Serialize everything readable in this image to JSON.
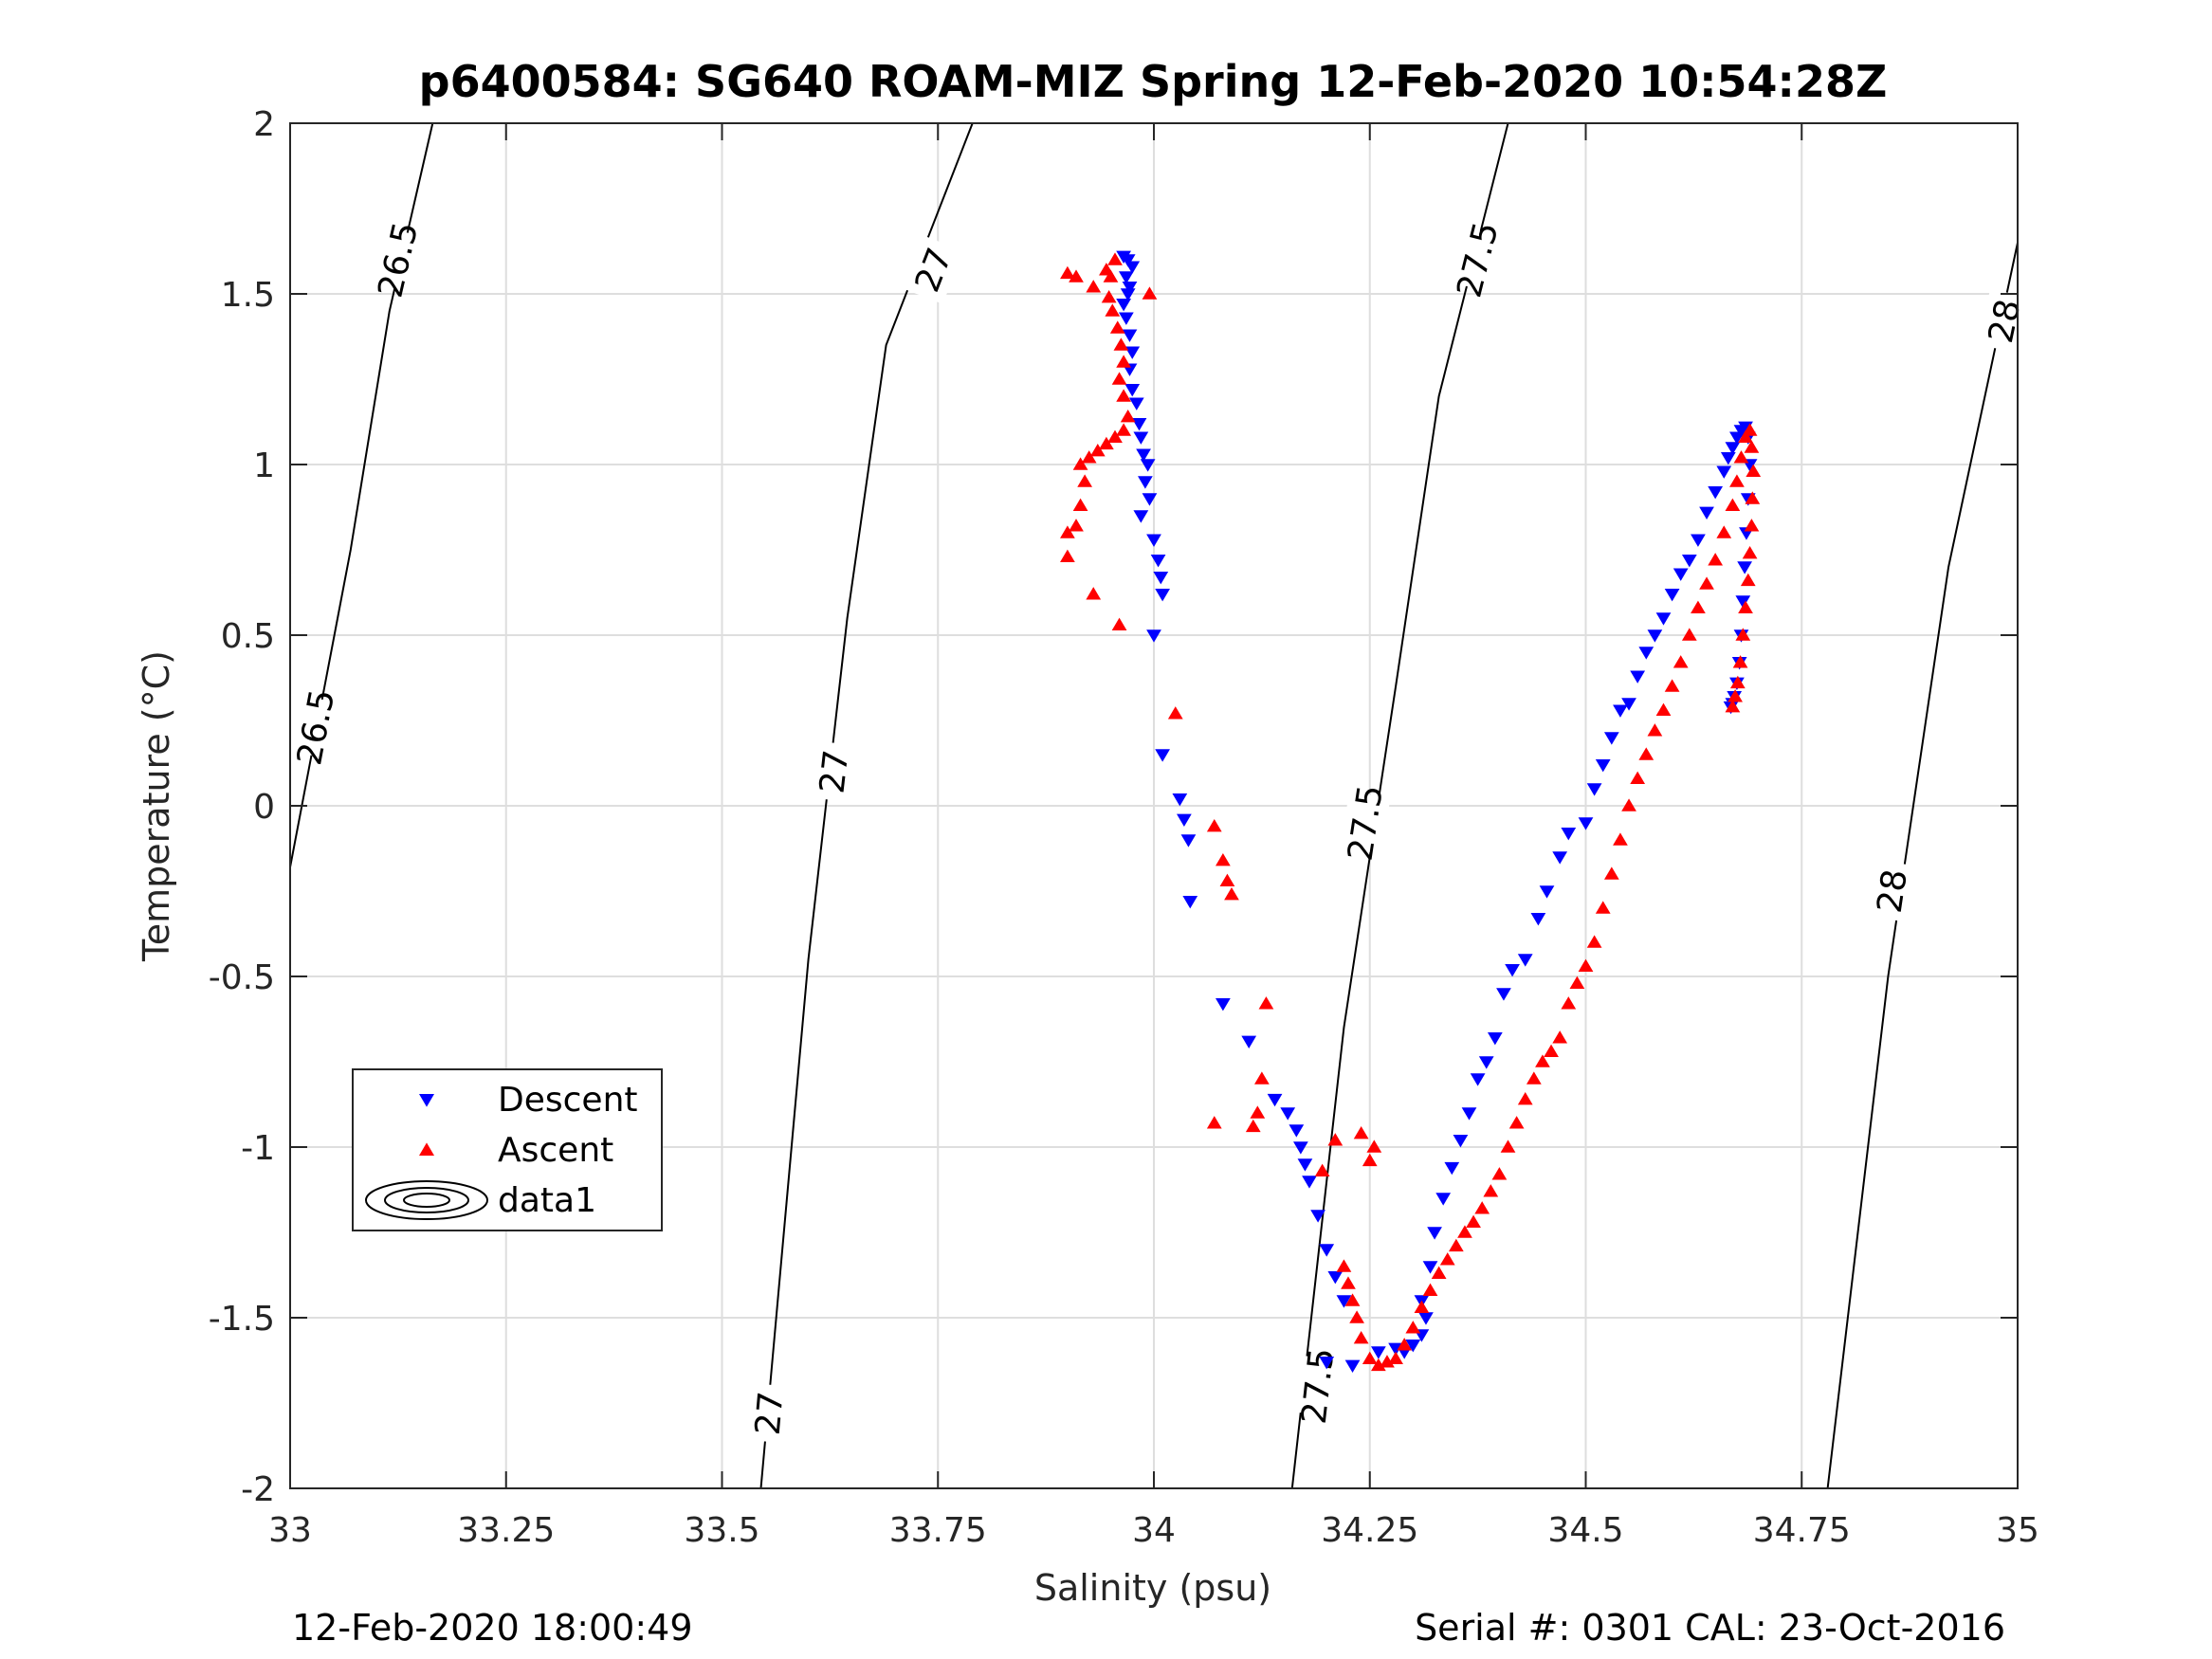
{
  "chart_data": {
    "type": "scatter",
    "title": "p6400584: SG640 ROAM-MIZ Spring 12-Feb-2020 10:54:28Z",
    "xlabel": "Salinity (psu)",
    "ylabel": "Temperature (°C)",
    "xlim": [
      33,
      35
    ],
    "ylim": [
      -2,
      2
    ],
    "xticks": [
      33,
      33.25,
      33.5,
      33.75,
      34,
      34.25,
      34.5,
      34.75,
      35
    ],
    "xtick_labels": [
      "33",
      "33.25",
      "33.5",
      "33.75",
      "34",
      "34.25",
      "34.5",
      "34.75",
      "35"
    ],
    "yticks": [
      -2,
      -1.5,
      -1,
      -0.5,
      0,
      0.5,
      1,
      1.5,
      2
    ],
    "ytick_labels": [
      "-2",
      "-1.5",
      "-1",
      "-0.5",
      "0",
      "0.5",
      "1",
      "1.5",
      "2"
    ],
    "grid": true,
    "legend_position": "lower-left",
    "footer_left": "12-Feb-2020 18:00:49",
    "footer_right": "Serial #: 0301  CAL: 23-Oct-2016",
    "series": [
      {
        "name": "Descent",
        "marker": "triangle-down",
        "color": "#0000ff",
        "points": [
          [
            33.965,
            1.61
          ],
          [
            33.97,
            1.6
          ],
          [
            33.975,
            1.58
          ],
          [
            33.968,
            1.55
          ],
          [
            33.972,
            1.52
          ],
          [
            33.97,
            1.5
          ],
          [
            33.965,
            1.47
          ],
          [
            33.968,
            1.43
          ],
          [
            33.972,
            1.38
          ],
          [
            33.975,
            1.33
          ],
          [
            33.972,
            1.28
          ],
          [
            33.975,
            1.22
          ],
          [
            33.98,
            1.18
          ],
          [
            33.983,
            1.12
          ],
          [
            33.985,
            1.08
          ],
          [
            33.988,
            1.03
          ],
          [
            33.993,
            1.0
          ],
          [
            33.99,
            0.95
          ],
          [
            33.995,
            0.9
          ],
          [
            33.985,
            0.85
          ],
          [
            34.0,
            0.78
          ],
          [
            34.005,
            0.72
          ],
          [
            34.008,
            0.67
          ],
          [
            34.01,
            0.62
          ],
          [
            34.0,
            0.5
          ],
          [
            34.01,
            0.15
          ],
          [
            34.03,
            0.02
          ],
          [
            34.035,
            -0.04
          ],
          [
            34.04,
            -0.1
          ],
          [
            34.042,
            -0.28
          ],
          [
            34.08,
            -0.58
          ],
          [
            34.11,
            -0.69
          ],
          [
            34.14,
            -0.86
          ],
          [
            34.155,
            -0.9
          ],
          [
            34.165,
            -0.95
          ],
          [
            34.17,
            -1.0
          ],
          [
            34.175,
            -1.05
          ],
          [
            34.18,
            -1.1
          ],
          [
            34.19,
            -1.2
          ],
          [
            34.2,
            -1.3
          ],
          [
            34.21,
            -1.38
          ],
          [
            34.22,
            -1.45
          ],
          [
            34.2,
            -1.63
          ],
          [
            34.23,
            -1.64
          ],
          [
            34.26,
            -1.6
          ],
          [
            34.28,
            -1.59
          ],
          [
            34.29,
            -1.6
          ],
          [
            34.3,
            -1.58
          ],
          [
            34.31,
            -1.55
          ],
          [
            34.315,
            -1.5
          ],
          [
            34.31,
            -1.45
          ],
          [
            34.32,
            -1.35
          ],
          [
            34.325,
            -1.25
          ],
          [
            34.335,
            -1.15
          ],
          [
            34.345,
            -1.06
          ],
          [
            34.355,
            -0.98
          ],
          [
            34.365,
            -0.9
          ],
          [
            34.375,
            -0.8
          ],
          [
            34.385,
            -0.75
          ],
          [
            34.395,
            -0.68
          ],
          [
            34.405,
            -0.55
          ],
          [
            34.415,
            -0.48
          ],
          [
            34.43,
            -0.45
          ],
          [
            34.445,
            -0.33
          ],
          [
            34.455,
            -0.25
          ],
          [
            34.47,
            -0.15
          ],
          [
            34.48,
            -0.08
          ],
          [
            34.5,
            -0.05
          ],
          [
            34.51,
            0.05
          ],
          [
            34.52,
            0.12
          ],
          [
            34.53,
            0.2
          ],
          [
            34.54,
            0.28
          ],
          [
            34.55,
            0.3
          ],
          [
            34.56,
            0.38
          ],
          [
            34.57,
            0.45
          ],
          [
            34.58,
            0.5
          ],
          [
            34.59,
            0.55
          ],
          [
            34.6,
            0.62
          ],
          [
            34.61,
            0.68
          ],
          [
            34.62,
            0.72
          ],
          [
            34.63,
            0.78
          ],
          [
            34.64,
            0.86
          ],
          [
            34.65,
            0.92
          ],
          [
            34.66,
            0.98
          ],
          [
            34.665,
            1.02
          ],
          [
            34.67,
            1.05
          ],
          [
            34.675,
            1.08
          ],
          [
            34.68,
            1.1
          ],
          [
            34.685,
            1.11
          ],
          [
            34.688,
            1.08
          ],
          [
            34.69,
            1.0
          ],
          [
            34.688,
            0.9
          ],
          [
            34.686,
            0.8
          ],
          [
            34.684,
            0.7
          ],
          [
            34.682,
            0.6
          ],
          [
            34.68,
            0.5
          ],
          [
            34.678,
            0.42
          ],
          [
            34.675,
            0.36
          ],
          [
            34.672,
            0.32
          ],
          [
            34.67,
            0.3
          ],
          [
            34.668,
            0.29
          ]
        ]
      },
      {
        "name": "Ascent",
        "marker": "triangle-up",
        "color": "#ff0000",
        "points": [
          [
            33.9,
            1.56
          ],
          [
            33.91,
            1.55
          ],
          [
            33.93,
            1.52
          ],
          [
            33.945,
            1.57
          ],
          [
            33.955,
            1.6
          ],
          [
            33.95,
            1.55
          ],
          [
            33.948,
            1.49
          ],
          [
            33.952,
            1.45
          ],
          [
            33.958,
            1.4
          ],
          [
            33.962,
            1.35
          ],
          [
            33.965,
            1.3
          ],
          [
            33.96,
            1.25
          ],
          [
            33.965,
            1.2
          ],
          [
            33.97,
            1.14
          ],
          [
            33.965,
            1.1
          ],
          [
            33.955,
            1.08
          ],
          [
            33.945,
            1.06
          ],
          [
            33.935,
            1.04
          ],
          [
            33.925,
            1.02
          ],
          [
            33.915,
            1.0
          ],
          [
            33.995,
            1.5
          ],
          [
            33.9,
            0.8
          ],
          [
            33.91,
            0.82
          ],
          [
            33.915,
            0.88
          ],
          [
            33.92,
            0.95
          ],
          [
            33.9,
            0.73
          ],
          [
            33.93,
            0.62
          ],
          [
            33.96,
            0.53
          ],
          [
            34.025,
            0.27
          ],
          [
            34.07,
            -0.06
          ],
          [
            34.08,
            -0.16
          ],
          [
            34.085,
            -0.22
          ],
          [
            34.09,
            -0.26
          ],
          [
            34.13,
            -0.58
          ],
          [
            34.125,
            -0.8
          ],
          [
            34.12,
            -0.9
          ],
          [
            34.115,
            -0.94
          ],
          [
            34.07,
            -0.93
          ],
          [
            34.195,
            -1.07
          ],
          [
            34.21,
            -0.98
          ],
          [
            34.24,
            -0.96
          ],
          [
            34.255,
            -1.0
          ],
          [
            34.25,
            -1.04
          ],
          [
            34.22,
            -1.35
          ],
          [
            34.225,
            -1.4
          ],
          [
            34.23,
            -1.45
          ],
          [
            34.235,
            -1.5
          ],
          [
            34.24,
            -1.56
          ],
          [
            34.25,
            -1.62
          ],
          [
            34.26,
            -1.64
          ],
          [
            34.27,
            -1.63
          ],
          [
            34.28,
            -1.62
          ],
          [
            34.29,
            -1.58
          ],
          [
            34.3,
            -1.53
          ],
          [
            34.31,
            -1.47
          ],
          [
            34.32,
            -1.42
          ],
          [
            34.33,
            -1.37
          ],
          [
            34.34,
            -1.33
          ],
          [
            34.35,
            -1.29
          ],
          [
            34.36,
            -1.25
          ],
          [
            34.37,
            -1.22
          ],
          [
            34.38,
            -1.18
          ],
          [
            34.39,
            -1.13
          ],
          [
            34.4,
            -1.08
          ],
          [
            34.41,
            -1.0
          ],
          [
            34.42,
            -0.93
          ],
          [
            34.43,
            -0.86
          ],
          [
            34.44,
            -0.8
          ],
          [
            34.45,
            -0.75
          ],
          [
            34.46,
            -0.72
          ],
          [
            34.47,
            -0.68
          ],
          [
            34.48,
            -0.58
          ],
          [
            34.49,
            -0.52
          ],
          [
            34.5,
            -0.47
          ],
          [
            34.51,
            -0.4
          ],
          [
            34.52,
            -0.3
          ],
          [
            34.53,
            -0.2
          ],
          [
            34.54,
            -0.1
          ],
          [
            34.55,
            0.0
          ],
          [
            34.56,
            0.08
          ],
          [
            34.57,
            0.15
          ],
          [
            34.58,
            0.22
          ],
          [
            34.59,
            0.28
          ],
          [
            34.6,
            0.35
          ],
          [
            34.61,
            0.42
          ],
          [
            34.62,
            0.5
          ],
          [
            34.63,
            0.58
          ],
          [
            34.64,
            0.65
          ],
          [
            34.65,
            0.72
          ],
          [
            34.66,
            0.8
          ],
          [
            34.67,
            0.88
          ],
          [
            34.675,
            0.95
          ],
          [
            34.68,
            1.02
          ],
          [
            34.685,
            1.08
          ],
          [
            34.69,
            1.1
          ],
          [
            34.692,
            1.05
          ],
          [
            34.694,
            0.98
          ],
          [
            34.693,
            0.9
          ],
          [
            34.692,
            0.82
          ],
          [
            34.69,
            0.74
          ],
          [
            34.688,
            0.66
          ],
          [
            34.685,
            0.58
          ],
          [
            34.682,
            0.5
          ],
          [
            34.679,
            0.42
          ],
          [
            34.676,
            0.36
          ],
          [
            34.673,
            0.32
          ],
          [
            34.67,
            0.29
          ]
        ]
      }
    ],
    "contours": [
      {
        "level": "26.5",
        "points": [
          [
            33.0,
            -0.18
          ],
          [
            33.07,
            0.75
          ],
          [
            33.115,
            1.45
          ],
          [
            33.165,
            2.0
          ]
        ],
        "labels": [
          [
            33.03,
            0.23
          ],
          [
            33.125,
            1.6
          ]
        ]
      },
      {
        "level": "27",
        "points": [
          [
            33.545,
            -2.0
          ],
          [
            33.6,
            -0.45
          ],
          [
            33.645,
            0.55
          ],
          [
            33.69,
            1.35
          ],
          [
            33.79,
            2.0
          ]
        ],
        "labels": [
          [
            33.555,
            -1.78
          ],
          [
            33.63,
            0.1
          ],
          [
            33.745,
            1.57
          ]
        ]
      },
      {
        "level": "27.5",
        "points": [
          [
            34.16,
            -2.0
          ],
          [
            34.22,
            -0.65
          ],
          [
            34.28,
            0.35
          ],
          [
            34.33,
            1.2
          ],
          [
            34.41,
            2.0
          ]
        ],
        "labels": [
          [
            34.19,
            -1.7
          ],
          [
            34.245,
            -0.05
          ],
          [
            34.375,
            1.6
          ]
        ]
      },
      {
        "level": "28",
        "points": [
          [
            34.78,
            -2.0
          ],
          [
            34.85,
            -0.5
          ],
          [
            34.92,
            0.7
          ],
          [
            35.0,
            1.65
          ]
        ],
        "labels": [
          [
            34.855,
            -0.25
          ],
          [
            34.985,
            1.42
          ]
        ]
      }
    ],
    "legend": [
      {
        "label": "Descent",
        "marker": "triangle-down",
        "color": "#0000ff"
      },
      {
        "label": "Ascent",
        "marker": "triangle-up",
        "color": "#ff0000"
      },
      {
        "label": "data1",
        "marker": "contour",
        "color": "#000000"
      }
    ]
  }
}
